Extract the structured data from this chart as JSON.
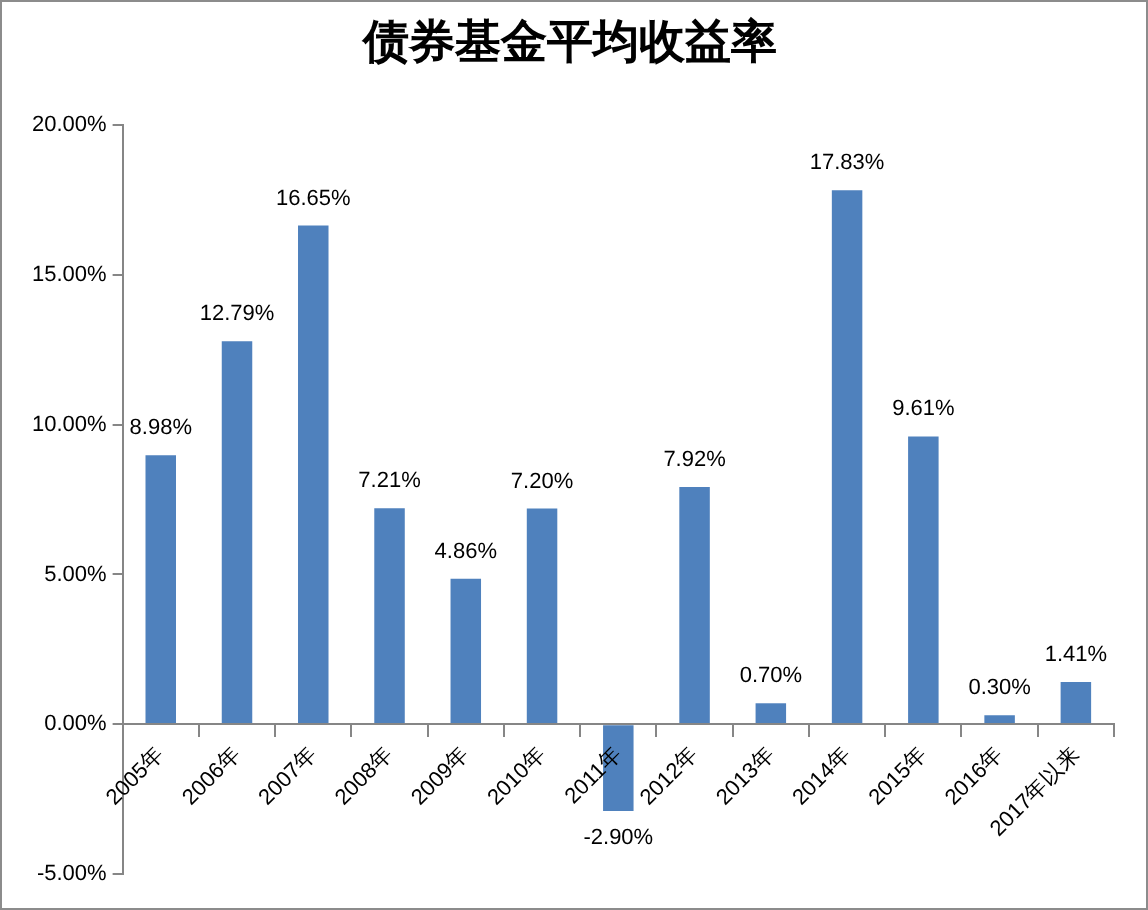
{
  "chart_data": {
    "type": "bar",
    "title": "债券基金平均收益率",
    "categories": [
      "2005年",
      "2006年",
      "2007年",
      "2008年",
      "2009年",
      "2010年",
      "2011年",
      "2012年",
      "2013年",
      "2014年",
      "2015年",
      "2016年",
      "2017年以来"
    ],
    "values": [
      8.98,
      12.79,
      16.65,
      7.21,
      4.86,
      7.2,
      -2.9,
      7.92,
      0.7,
      17.83,
      9.61,
      0.3,
      1.41
    ],
    "value_labels": [
      "8.98%",
      "12.79%",
      "16.65%",
      "7.21%",
      "4.86%",
      "7.20%",
      "-2.90%",
      "7.92%",
      "0.70%",
      "17.83%",
      "9.61%",
      "0.30%",
      "1.41%"
    ],
    "color": "#4f81bd",
    "ylim": [
      -5,
      20
    ],
    "yticks": [
      {
        "value": -5,
        "label": "-5.00%"
      },
      {
        "value": 0,
        "label": "0.00%"
      },
      {
        "value": 5,
        "label": "5.00%"
      },
      {
        "value": 10,
        "label": "10.00%"
      },
      {
        "value": 15,
        "label": "15.00%"
      },
      {
        "value": 20,
        "label": "20.00%"
      }
    ]
  }
}
